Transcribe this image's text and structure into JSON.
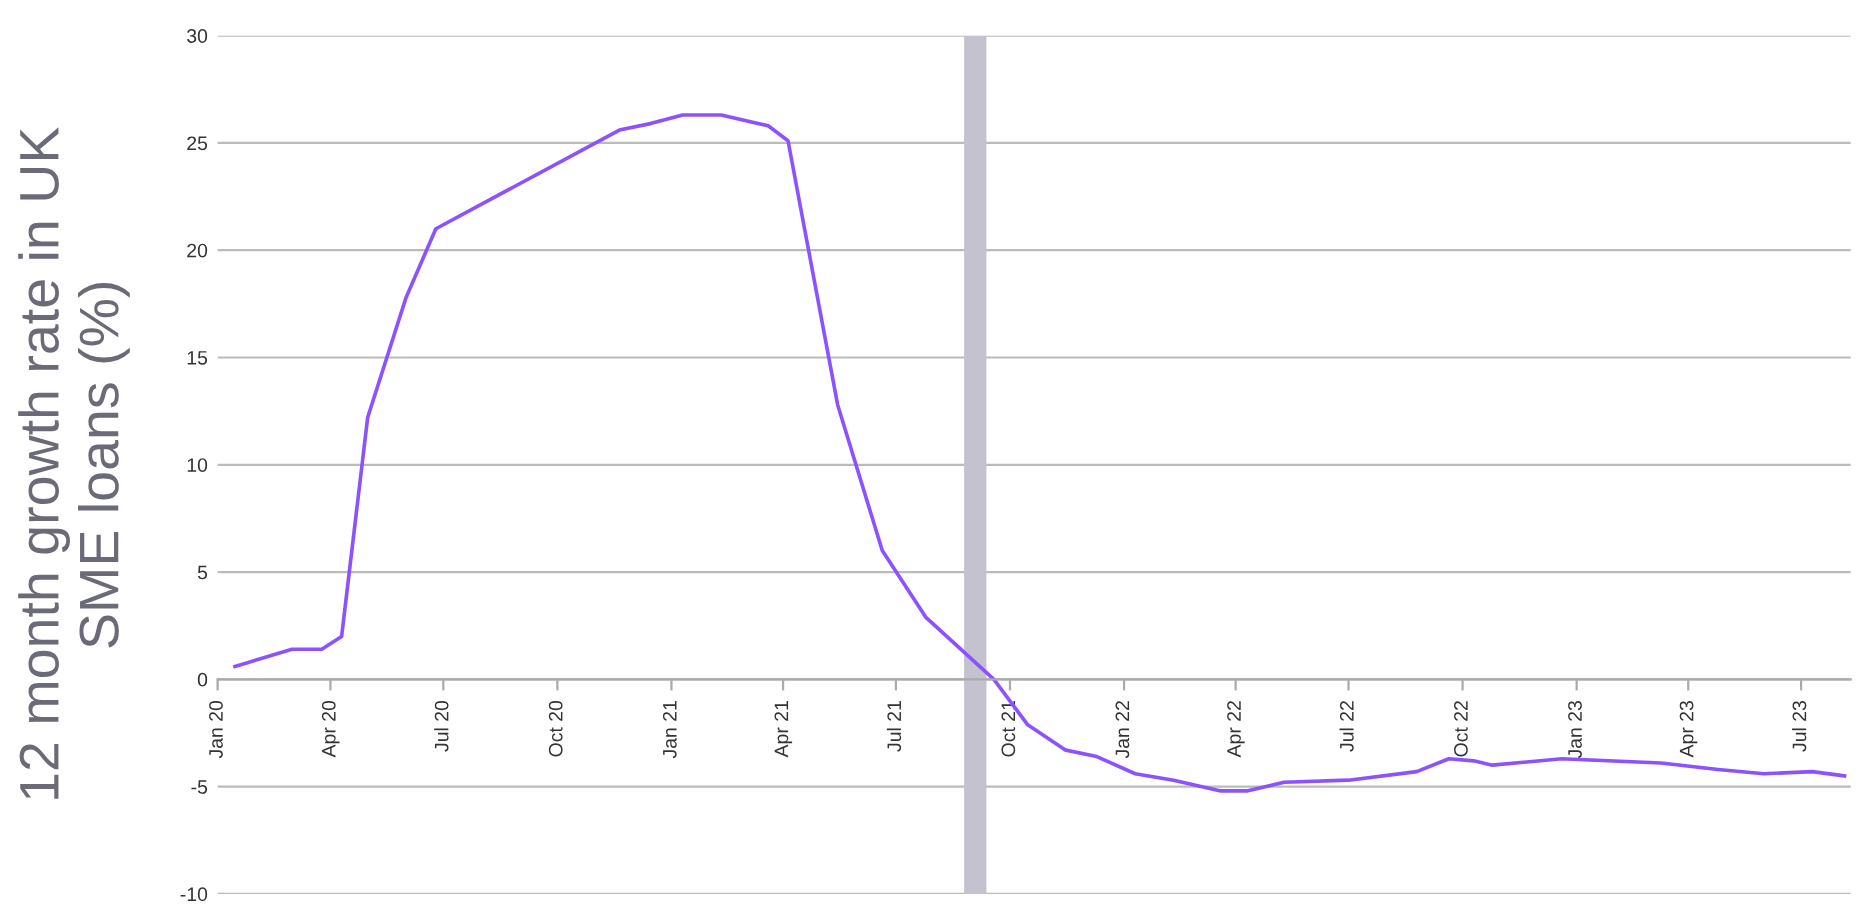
{
  "chart_data": {
    "type": "line",
    "ylabel": "12 month growth rate in UK\nSME loans (%)",
    "x": [
      "2020-01-15",
      "2020-03-01",
      "2020-03-25",
      "2020-04-10",
      "2020-05-01",
      "2020-06-01",
      "2020-06-25",
      "2020-11-20",
      "2020-12-15",
      "2021-01-10",
      "2021-02-10",
      "2021-03-20",
      "2021-04-05",
      "2021-05-15",
      "2021-06-20",
      "2021-07-25",
      "2021-09-18",
      "2021-10-15",
      "2021-11-15",
      "2021-12-10",
      "2022-01-10",
      "2022-02-10",
      "2022-03-20",
      "2022-04-10",
      "2022-05-10",
      "2022-07-01",
      "2022-08-25",
      "2022-09-20",
      "2022-10-10",
      "2022-10-25",
      "2022-12-20",
      "2023-03-10",
      "2023-04-25",
      "2023-06-01",
      "2023-07-10",
      "2023-08-05"
    ],
    "series": [
      {
        "color": "#8c52ff",
        "values": [
          0.6,
          1.4,
          1.4,
          2.0,
          12.2,
          17.8,
          21.0,
          25.6,
          25.9,
          26.3,
          26.3,
          25.8,
          25.1,
          12.8,
          6.0,
          2.9,
          0,
          -2.1,
          -3.3,
          -3.6,
          -4.4,
          -4.7,
          -5.2,
          -5.2,
          -4.8,
          -4.7,
          -4.3,
          -3.7,
          -3.8,
          -4.0,
          -3.7,
          -3.9,
          -4.2,
          -4.4,
          -4.3,
          -4.5
        ]
      }
    ],
    "xlim": [
      "2020-01-01",
      "2023-08-10"
    ],
    "xticks": [
      {
        "value": "2020-01-01",
        "label": "Jan 20"
      },
      {
        "value": "2020-04-01",
        "label": "Apr 20"
      },
      {
        "value": "2020-07-01",
        "label": "Jul 20"
      },
      {
        "value": "2020-10-01",
        "label": "Oct 20"
      },
      {
        "value": "2021-01-01",
        "label": "Jan 21"
      },
      {
        "value": "2021-04-01",
        "label": "Apr 21"
      },
      {
        "value": "2021-07-01",
        "label": "Jul 21"
      },
      {
        "value": "2021-10-01",
        "label": "Oct 21"
      },
      {
        "value": "2022-01-01",
        "label": "Jan 22"
      },
      {
        "value": "2022-04-01",
        "label": "Apr 22"
      },
      {
        "value": "2022-07-01",
        "label": "Jul 22"
      },
      {
        "value": "2022-10-01",
        "label": "Oct 22"
      },
      {
        "value": "2023-01-01",
        "label": "Jan 23"
      },
      {
        "value": "2023-04-01",
        "label": "Apr 23"
      },
      {
        "value": "2023-07-01",
        "label": "Jul 23"
      }
    ],
    "ylim": [
      -10,
      30
    ],
    "yticks": [
      -10,
      -5,
      0,
      5,
      10,
      15,
      20,
      25,
      30
    ],
    "grid": "y",
    "line_style": "solid",
    "bands": [
      {
        "axis": "x",
        "from": "2021-08-25",
        "to": "2021-09-12",
        "color": "#c4c2cf"
      }
    ]
  }
}
